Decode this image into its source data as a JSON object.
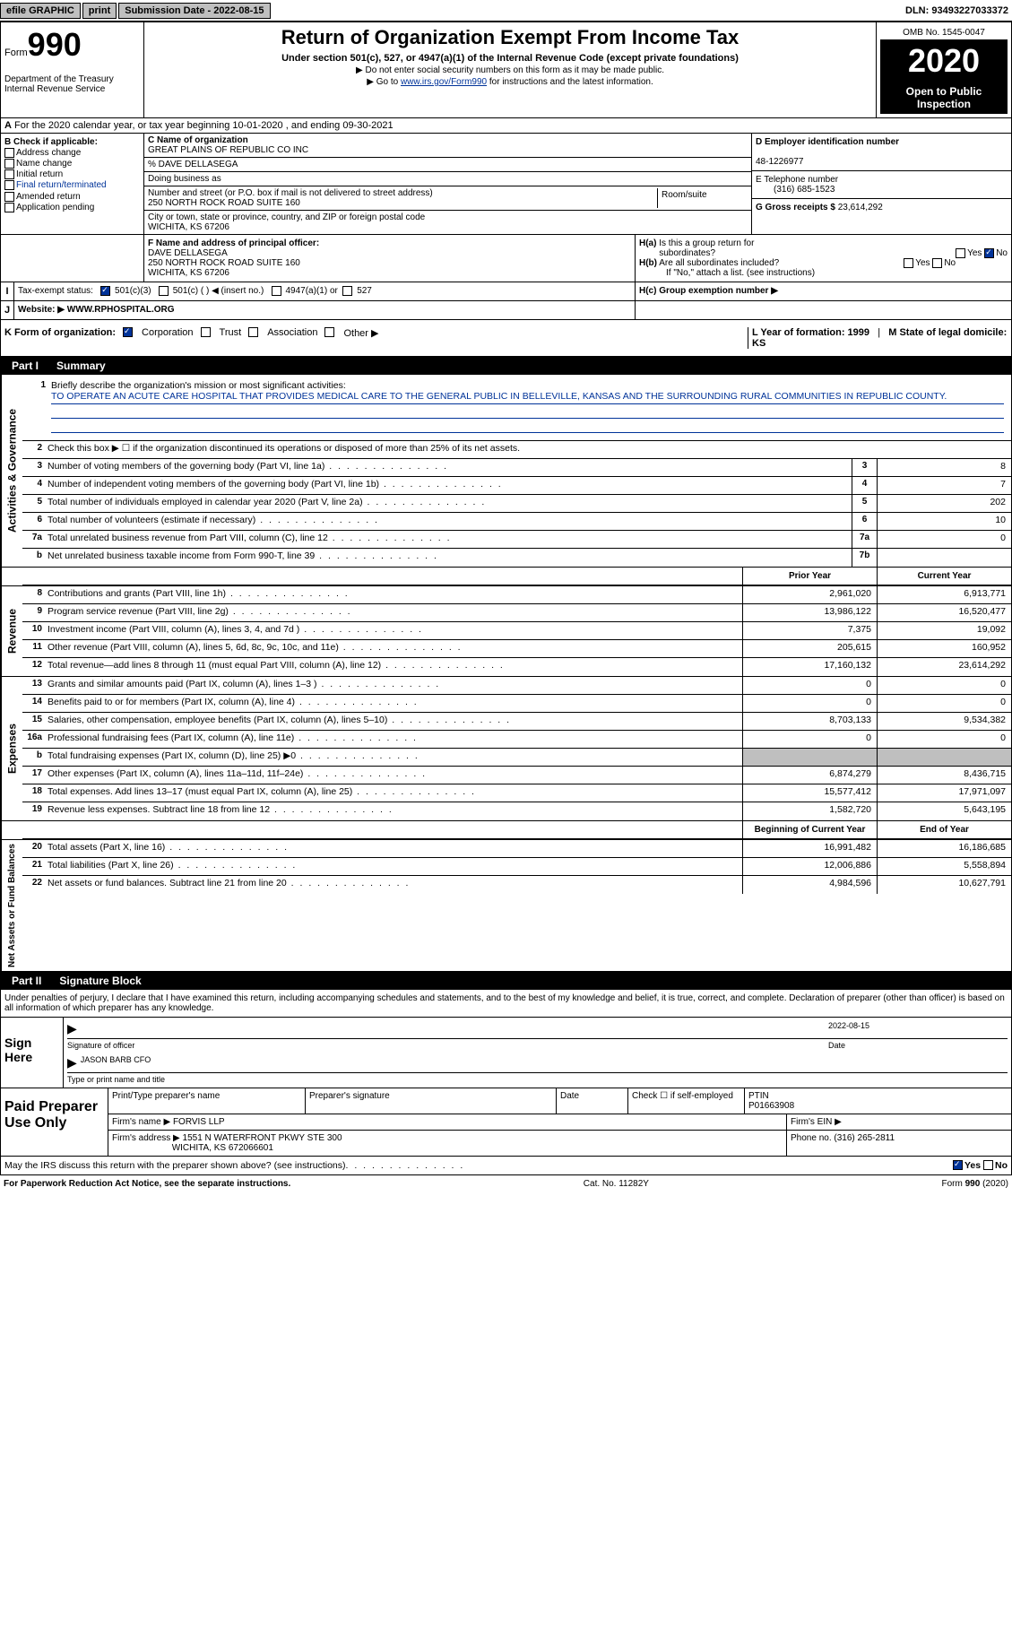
{
  "top_bar": {
    "efile": "efile GRAPHIC",
    "print": "print",
    "submission_label": "Submission Date - 2022-08-15",
    "dln": "DLN: 93493227033372"
  },
  "header": {
    "form_label": "Form",
    "form_number": "990",
    "dept": "Department of the Treasury\nInternal Revenue Service",
    "title": "Return of Organization Exempt From Income Tax",
    "subtitle": "Under section 501(c), 527, or 4947(a)(1) of the Internal Revenue Code (except private foundations)",
    "note1": "▶ Do not enter social security numbers on this form as it may be made public.",
    "note2_prefix": "▶ Go to ",
    "note2_link": "www.irs.gov/Form990",
    "note2_suffix": " for instructions and the latest information.",
    "omb": "OMB No. 1545-0047",
    "year": "2020",
    "inspect": "Open to Public Inspection"
  },
  "tax_year": "For the 2020 calendar year, or tax year beginning 10-01-2020    , and ending 09-30-2021",
  "section_b": {
    "b_label": "B Check if applicable:",
    "checkboxes": [
      "Address change",
      "Name change",
      "Initial return",
      "Final return/terminated",
      "Amended return",
      "Application pending"
    ],
    "c_label": "C Name of organization",
    "org_name": "GREAT PLAINS OF REPUBLIC CO INC",
    "care_of": "% DAVE DELLASEGA",
    "dba_label": "Doing business as",
    "addr_label": "Number and street (or P.O. box if mail is not delivered to street address)",
    "room_label": "Room/suite",
    "address": "250 NORTH ROCK ROAD SUITE 160",
    "city_label": "City or town, state or province, country, and ZIP or foreign postal code",
    "city": "WICHITA, KS  67206",
    "d_label": "D Employer identification number",
    "ein": "48-1226977",
    "e_label": "E Telephone number",
    "phone": "(316) 685-1523",
    "g_label": "G Gross receipts $",
    "gross": "23,614,292"
  },
  "officer": {
    "f_label": "F  Name and address of principal officer:",
    "name": "DAVE DELLASEGA",
    "addr1": "250 NORTH ROCK ROAD SUITE 160",
    "addr2": "WICHITA, KS  67206",
    "ha_label": "H(a)  Is this a group return for subordinates?",
    "hb_label": "H(b)  Are all subordinates included?",
    "hb_note": "If \"No,\" attach a list. (see instructions)",
    "hc_label": "H(c)  Group exemption number ▶"
  },
  "status": {
    "i_label": "Tax-exempt status:",
    "opt1": "501(c)(3)",
    "opt2": "501(c) (   ) ◀ (insert no.)",
    "opt3": "4947(a)(1) or",
    "opt4": "527"
  },
  "website": {
    "j_label": "Website: ▶",
    "url": "WWW.RPHOSPITAL.ORG"
  },
  "k_row": {
    "k_label": "K Form of organization:",
    "opts": [
      "Corporation",
      "Trust",
      "Association",
      "Other ▶"
    ],
    "l_label": "L Year of formation: 1999",
    "m_label": "M State of legal domicile: KS"
  },
  "part1": {
    "tab": "Part I",
    "title": "Summary",
    "mission_label": "Briefly describe the organization's mission or most significant activities:",
    "mission": "TO OPERATE AN ACUTE CARE HOSPITAL THAT PROVIDES MEDICAL CARE TO THE GENERAL PUBLIC IN BELLEVILLE, KANSAS AND THE SURROUNDING RURAL COMMUNITIES IN REPUBLIC COUNTY.",
    "line2": "Check this box ▶ ☐  if the organization discontinued its operations or disposed of more than 25% of its net assets.",
    "governance": {
      "label": "Activities & Governance",
      "rows": [
        {
          "n": "3",
          "t": "Number of voting members of the governing body (Part VI, line 1a)",
          "box": "3",
          "v": "8"
        },
        {
          "n": "4",
          "t": "Number of independent voting members of the governing body (Part VI, line 1b)",
          "box": "4",
          "v": "7"
        },
        {
          "n": "5",
          "t": "Total number of individuals employed in calendar year 2020 (Part V, line 2a)",
          "box": "5",
          "v": "202"
        },
        {
          "n": "6",
          "t": "Total number of volunteers (estimate if necessary)",
          "box": "6",
          "v": "10"
        },
        {
          "n": "7a",
          "t": "Total unrelated business revenue from Part VIII, column (C), line 12",
          "box": "7a",
          "v": "0"
        },
        {
          "n": "b",
          "t": "Net unrelated business taxable income from Form 990-T, line 39",
          "box": "7b",
          "v": ""
        }
      ]
    },
    "col_headers": {
      "prior": "Prior Year",
      "current": "Current Year"
    },
    "revenue": {
      "label": "Revenue",
      "rows": [
        {
          "n": "8",
          "t": "Contributions and grants (Part VIII, line 1h)",
          "p": "2,961,020",
          "c": "6,913,771"
        },
        {
          "n": "9",
          "t": "Program service revenue (Part VIII, line 2g)",
          "p": "13,986,122",
          "c": "16,520,477"
        },
        {
          "n": "10",
          "t": "Investment income (Part VIII, column (A), lines 3, 4, and 7d )",
          "p": "7,375",
          "c": "19,092"
        },
        {
          "n": "11",
          "t": "Other revenue (Part VIII, column (A), lines 5, 6d, 8c, 9c, 10c, and 11e)",
          "p": "205,615",
          "c": "160,952"
        },
        {
          "n": "12",
          "t": "Total revenue—add lines 8 through 11 (must equal Part VIII, column (A), line 12)",
          "p": "17,160,132",
          "c": "23,614,292"
        }
      ]
    },
    "expenses": {
      "label": "Expenses",
      "rows": [
        {
          "n": "13",
          "t": "Grants and similar amounts paid (Part IX, column (A), lines 1–3 )",
          "p": "0",
          "c": "0"
        },
        {
          "n": "14",
          "t": "Benefits paid to or for members (Part IX, column (A), line 4)",
          "p": "0",
          "c": "0"
        },
        {
          "n": "15",
          "t": "Salaries, other compensation, employee benefits (Part IX, column (A), lines 5–10)",
          "p": "8,703,133",
          "c": "9,534,382"
        },
        {
          "n": "16a",
          "t": "Professional fundraising fees (Part IX, column (A), line 11e)",
          "p": "0",
          "c": "0"
        },
        {
          "n": "b",
          "t": "Total fundraising expenses (Part IX, column (D), line 25) ▶0",
          "p": "",
          "c": "",
          "shaded": true
        },
        {
          "n": "17",
          "t": "Other expenses (Part IX, column (A), lines 11a–11d, 11f–24e)",
          "p": "6,874,279",
          "c": "8,436,715"
        },
        {
          "n": "18",
          "t": "Total expenses. Add lines 13–17 (must equal Part IX, column (A), line 25)",
          "p": "15,577,412",
          "c": "17,971,097"
        },
        {
          "n": "19",
          "t": "Revenue less expenses. Subtract line 18 from line 12",
          "p": "1,582,720",
          "c": "5,643,195"
        }
      ]
    },
    "col_headers2": {
      "begin": "Beginning of Current Year",
      "end": "End of Year"
    },
    "netassets": {
      "label": "Net Assets or Fund Balances",
      "rows": [
        {
          "n": "20",
          "t": "Total assets (Part X, line 16)",
          "p": "16,991,482",
          "c": "16,186,685"
        },
        {
          "n": "21",
          "t": "Total liabilities (Part X, line 26)",
          "p": "12,006,886",
          "c": "5,558,894"
        },
        {
          "n": "22",
          "t": "Net assets or fund balances. Subtract line 21 from line 20",
          "p": "4,984,596",
          "c": "10,627,791"
        }
      ]
    }
  },
  "part2": {
    "tab": "Part II",
    "title": "Signature Block",
    "declaration": "Under penalties of perjury, I declare that I have examined this return, including accompanying schedules and statements, and to the best of my knowledge and belief, it is true, correct, and complete. Declaration of preparer (other than officer) is based on all information of which preparer has any knowledge.",
    "sign_here": "Sign Here",
    "sig_date": "2022-08-15",
    "sig_officer_label": "Signature of officer",
    "date_label": "Date",
    "officer_name": "JASON BARB CFO",
    "type_name_label": "Type or print name and title",
    "paid_label": "Paid Preparer Use Only",
    "pp_name_label": "Print/Type preparer's name",
    "pp_sig_label": "Preparer's signature",
    "pp_date_label": "Date",
    "pp_check_label": "Check ☐ if self-employed",
    "ptin_label": "PTIN",
    "ptin": "P01663908",
    "firm_name_label": "Firm's name     ▶",
    "firm_name": "FORVIS LLP",
    "firm_ein_label": "Firm's EIN ▶",
    "firm_addr_label": "Firm's address ▶",
    "firm_addr": "1551 N WATERFRONT PKWY STE 300",
    "firm_city": "WICHITA, KS  672066601",
    "firm_phone_label": "Phone no.",
    "firm_phone": "(316) 265-2811",
    "discuss": "May the IRS discuss this return with the preparer shown above? (see instructions)",
    "yes": "Yes",
    "no": "No"
  },
  "footer": {
    "left": "For Paperwork Reduction Act Notice, see the separate instructions.",
    "mid": "Cat. No. 11282Y",
    "right": "Form 990 (2020)"
  }
}
